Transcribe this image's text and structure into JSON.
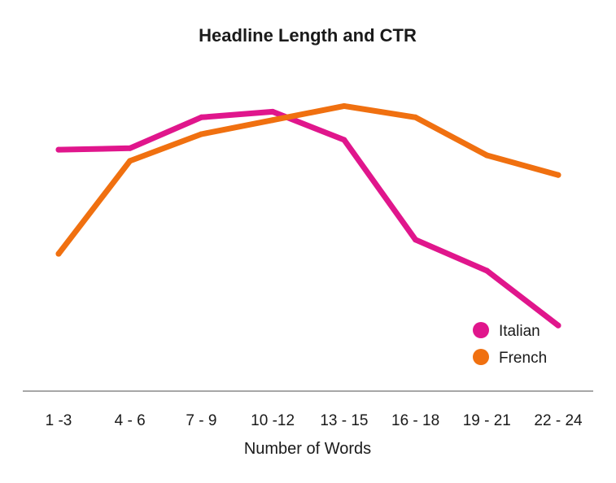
{
  "chart_data": {
    "type": "line",
    "title": "Headline Length and CTR",
    "xlabel": "Number of Words",
    "ylabel": "",
    "categories": [
      "1 -3",
      "4 - 6",
      "7 - 9",
      "10 -12",
      "13 - 15",
      "16 - 18",
      "19 - 21",
      "22 - 24"
    ],
    "ylim": [
      0,
      100
    ],
    "grid": false,
    "legend_position": "bottom-right",
    "series": [
      {
        "name": "Italian",
        "color": "#e0168c",
        "values": [
          70.5,
          71,
          82,
          84,
          74,
          38.5,
          27.5,
          8
        ]
      },
      {
        "name": "French",
        "color": "#f07010",
        "values": [
          33.5,
          66.5,
          76,
          81,
          86,
          82,
          68.5,
          61.5
        ]
      }
    ]
  }
}
